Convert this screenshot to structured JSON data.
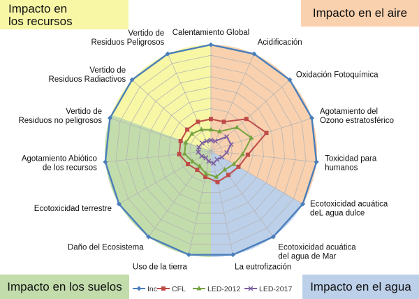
{
  "boxes": {
    "resources": "Impacto en\nlos recursos",
    "air": "Impacto en el aire",
    "soil": "Impacto en los suelos",
    "water": "Impacto en el agua"
  },
  "colors": {
    "resources": "#f7f7a6",
    "air": "#f9d1ae",
    "soil": "#c2dcab",
    "water": "#bdd0ea",
    "grid": "#b5b5b5"
  },
  "chart_data": {
    "type": "radar",
    "axes": [
      "Calentamiento Global",
      "Acidificación",
      "Oxidación Fotoquímica",
      "Agotamiento del\nOzono estratosférico",
      "Toxicidad para\nhumanos",
      "Ecotoxicidad acuática\ndeL agua dulce",
      "Ecotoxicidad acuática\ndel agua de Mar",
      "La eutrofización",
      "Uso de la tierra",
      "Daño del Ecosistema",
      "Ecotoxicidad terrestre",
      "Agotamiento Abiótico\nde los recursos",
      "Vertido de\nResiduos no peligrosos",
      "Vertido de\nResiduos Radiactivos",
      "Vertido de\nResiduos Peligrosos"
    ],
    "rlim": [
      0,
      100
    ],
    "grid_levels": 10,
    "series": [
      {
        "name": "Inc",
        "color": "#4a7ebb",
        "marker": "diamond",
        "values": [
          100,
          100,
          100,
          100,
          100,
          100,
          100,
          100,
          100,
          100,
          100,
          100,
          100,
          100,
          100
        ]
      },
      {
        "name": "CFL",
        "color": "#be4b48",
        "marker": "square",
        "values": [
          30,
          30,
          45,
          55,
          35,
          30,
          28,
          30,
          25,
          22,
          25,
          30,
          30,
          30,
          30
        ]
      },
      {
        "name": "LED-2012",
        "color": "#77a33e",
        "marker": "triangle",
        "values": [
          20,
          20,
          33,
          40,
          30,
          25,
          22,
          25,
          22,
          18,
          20,
          25,
          25,
          24,
          22
        ]
      },
      {
        "name": "LED-2017",
        "color": "#7d60a0",
        "marker": "x",
        "values": [
          10,
          10,
          20,
          20,
          15,
          12,
          10,
          12,
          10,
          8,
          10,
          12,
          12,
          11,
          10
        ]
      }
    ]
  }
}
